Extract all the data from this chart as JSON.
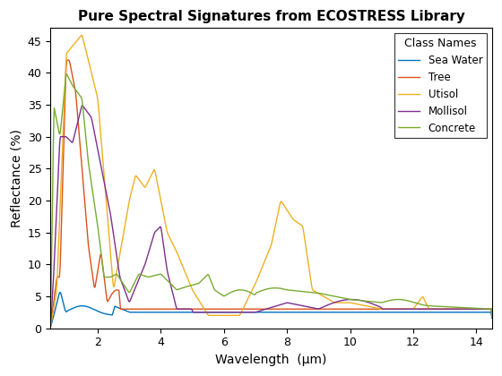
{
  "title": "Pure Spectral Signatures from ECOSTRESS Library",
  "xlabel": "Wavelength  (μm)",
  "ylabel": "Reflectance (%)",
  "legend_title": "Class Names",
  "series": [
    {
      "label": "Sea Water",
      "color": "#0072BD"
    },
    {
      "label": "Tree",
      "color": "#D95319"
    },
    {
      "label": "Utisol",
      "color": "#EDB120"
    },
    {
      "label": "Mollisol",
      "color": "#7E2F8E"
    },
    {
      "label": "Concrete",
      "color": "#77AC30"
    }
  ],
  "xlim": [
    0.5,
    14.5
  ],
  "ylim": [
    0,
    47
  ],
  "xticks": [
    2,
    4,
    6,
    8,
    10,
    12,
    14
  ],
  "yticks": [
    0,
    5,
    10,
    15,
    20,
    25,
    30,
    35,
    40,
    45
  ]
}
